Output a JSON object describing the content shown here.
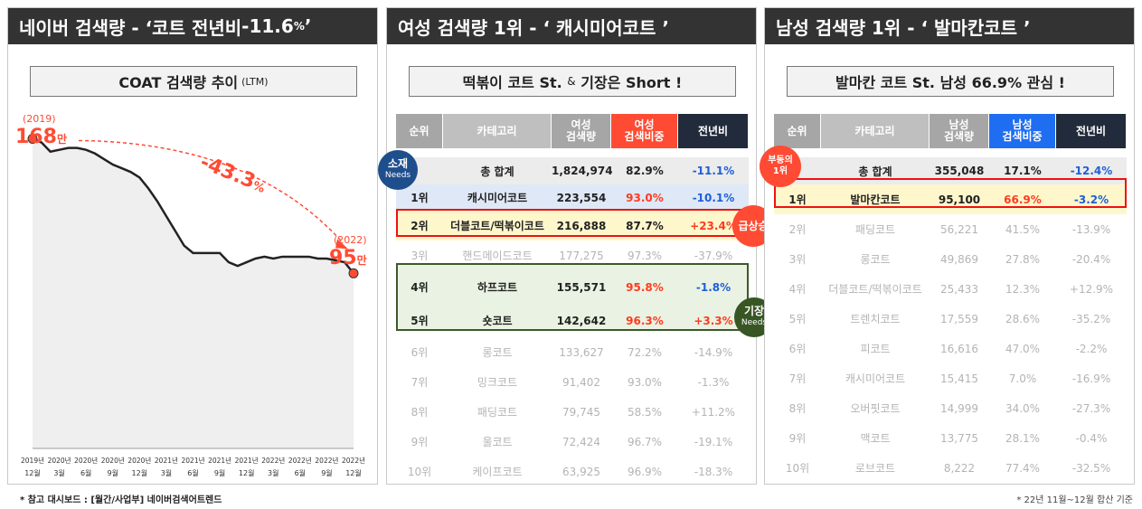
{
  "panel1": {
    "title_prefix": "네이버 검색량 - ‘코트 전년비 ",
    "title_value": "-11.6",
    "title_unit": "%",
    "title_suffix": "’",
    "subtitle": "COAT 검색량 추이",
    "subtitle_small": "(LTM)",
    "start_label_year": "(2019)",
    "start_value": "168",
    "start_unit": "만",
    "end_label_year": "(2022)",
    "end_value": "95",
    "end_unit": "만",
    "change_value": "-43.3",
    "change_unit": "%"
  },
  "chart_data": {
    "type": "line",
    "title": "COAT 검색량 추이 (LTM)",
    "x": [
      "2019년 12월",
      "2020년 1월",
      "2020년 2월",
      "2020년 3월",
      "2020년 4월",
      "2020년 5월",
      "2020년 6월",
      "2020년 7월",
      "2020년 8월",
      "2020년 9월",
      "2020년 10월",
      "2020년 11월",
      "2020년 12월",
      "2021년 1월",
      "2021년 2월",
      "2021년 3월",
      "2021년 4월",
      "2021년 5월",
      "2021년 6월",
      "2021년 7월",
      "2021년 8월",
      "2021년 9월",
      "2021년 10월",
      "2021년 11월",
      "2021년 12월",
      "2022년 1월",
      "2022년 2월",
      "2022년 3월",
      "2022년 4월",
      "2022년 5월",
      "2022년 6월",
      "2022년 7월",
      "2022년 8월",
      "2022년 9월",
      "2022년 10월",
      "2022년 11월",
      "2022년 12월"
    ],
    "values": [
      168,
      166,
      161,
      162,
      163,
      163,
      162,
      160,
      157,
      154,
      152,
      150,
      147,
      141,
      134,
      126,
      118,
      110,
      106,
      106,
      106,
      106,
      101,
      99,
      101,
      103,
      104,
      103,
      104,
      104,
      104,
      104,
      103,
      103,
      102,
      101,
      95
    ],
    "tick_labels": [
      {
        "year": "2019년",
        "month": "12월"
      },
      {
        "year": "2020년",
        "month": "3월"
      },
      {
        "year": "2020년",
        "month": "6월"
      },
      {
        "year": "2020년",
        "month": "9월"
      },
      {
        "year": "2020년",
        "month": "12월"
      },
      {
        "year": "2021년",
        "month": "3월"
      },
      {
        "year": "2021년",
        "month": "6월"
      },
      {
        "year": "2021년",
        "month": "9월"
      },
      {
        "year": "2021년",
        "month": "12월"
      },
      {
        "year": "2022년",
        "month": "3월"
      },
      {
        "year": "2022년",
        "month": "6월"
      },
      {
        "year": "2022년",
        "month": "9월"
      },
      {
        "year": "2022년",
        "month": "12월"
      }
    ],
    "annotations": [
      "168만",
      "95만",
      "-43.3%"
    ],
    "colors": {
      "line": "#222222",
      "fill": "#efefef",
      "accent": "#ff4b33"
    }
  },
  "panel2": {
    "title": "여성 검색량 1위 - ‘ 캐시미어코트 ’",
    "subtitle_a": "떡볶이 코트 St.",
    "subtitle_amp": "&",
    "subtitle_b": "기장은 Short !",
    "headers": [
      "순위",
      "카테고리",
      "여성\n검색량",
      "여성\n검색비중",
      "전년비"
    ],
    "rows": [
      {
        "rank": "",
        "category": "총 합계",
        "volume": "1,824,974",
        "share": "82.9%",
        "yoy": "-11.1%",
        "style": "total"
      },
      {
        "rank": "1위",
        "category": "캐시미어코트",
        "volume": "223,554",
        "share": "93.0%",
        "yoy": "-10.1%",
        "style": "blue"
      },
      {
        "rank": "2위",
        "category": "더블코트/떡볶이코트",
        "volume": "216,888",
        "share": "87.7%",
        "yoy": "+23.4%",
        "style": "yellow"
      },
      {
        "rank": "3위",
        "category": "핸드메이드코트",
        "volume": "177,275",
        "share": "97.3%",
        "yoy": "-37.9%",
        "style": "faded"
      },
      {
        "rank": "4위",
        "category": "하프코트",
        "volume": "155,571",
        "share": "95.8%",
        "yoy": "-1.8%",
        "style": "green"
      },
      {
        "rank": "5위",
        "category": "숏코트",
        "volume": "142,642",
        "share": "96.3%",
        "yoy": "+3.3%",
        "style": "green"
      },
      {
        "rank": "6위",
        "category": "롱코트",
        "volume": "133,627",
        "share": "72.2%",
        "yoy": "-14.9%",
        "style": "faded"
      },
      {
        "rank": "7위",
        "category": "밍크코트",
        "volume": "91,402",
        "share": "93.0%",
        "yoy": "-1.3%",
        "style": "faded"
      },
      {
        "rank": "8위",
        "category": "패딩코트",
        "volume": "79,745",
        "share": "58.5%",
        "yoy": "+11.2%",
        "style": "faded"
      },
      {
        "rank": "9위",
        "category": "울코트",
        "volume": "72,424",
        "share": "96.7%",
        "yoy": "-19.1%",
        "style": "faded"
      },
      {
        "rank": "10위",
        "category": "케이프코트",
        "volume": "63,925",
        "share": "96.9%",
        "yoy": "-18.3%",
        "style": "faded"
      }
    ],
    "bubble_needs": {
      "title": "소재",
      "sub": "Needs"
    },
    "bubble_rise": {
      "title": "급상승"
    },
    "bubble_length": {
      "title": "기장",
      "sub": "Needs"
    }
  },
  "panel3": {
    "title": "남성 검색량 1위 - ‘ 발마칸코트 ’",
    "subtitle": "발마칸 코트 St. 남성 66.9% 관심 !",
    "headers": [
      "순위",
      "카테고리",
      "남성\n검색량",
      "남성\n검색비중",
      "전년비"
    ],
    "rows": [
      {
        "rank": "",
        "category": "총 합계",
        "volume": "355,048",
        "share": "17.1%",
        "yoy": "-12.4%",
        "style": "total"
      },
      {
        "rank": "1위",
        "category": "발마칸코트",
        "volume": "95,100",
        "share": "66.9%",
        "yoy": "-3.2%",
        "style": "yellow"
      },
      {
        "rank": "2위",
        "category": "패딩코트",
        "volume": "56,221",
        "share": "41.5%",
        "yoy": "-13.9%",
        "style": "faded"
      },
      {
        "rank": "3위",
        "category": "롱코트",
        "volume": "49,869",
        "share": "27.8%",
        "yoy": "-20.4%",
        "style": "faded"
      },
      {
        "rank": "4위",
        "category": "더블코트/떡볶이코트",
        "volume": "25,433",
        "share": "12.3%",
        "yoy": "+12.9%",
        "style": "faded"
      },
      {
        "rank": "5위",
        "category": "트렌치코트",
        "volume": "17,559",
        "share": "28.6%",
        "yoy": "-35.2%",
        "style": "faded"
      },
      {
        "rank": "6위",
        "category": "피코트",
        "volume": "16,616",
        "share": "47.0%",
        "yoy": "-2.2%",
        "style": "faded"
      },
      {
        "rank": "7위",
        "category": "캐시미어코트",
        "volume": "15,415",
        "share": "7.0%",
        "yoy": "-16.9%",
        "style": "faded"
      },
      {
        "rank": "8위",
        "category": "오버핏코트",
        "volume": "14,999",
        "share": "34.0%",
        "yoy": "-27.3%",
        "style": "faded"
      },
      {
        "rank": "9위",
        "category": "맥코트",
        "volume": "13,775",
        "share": "28.1%",
        "yoy": "-0.4%",
        "style": "faded"
      },
      {
        "rank": "10위",
        "category": "로브코트",
        "volume": "8,222",
        "share": "77.4%",
        "yoy": "-32.5%",
        "style": "faded"
      }
    ],
    "bubble_first": {
      "line1": "부동의",
      "line2": "1위"
    }
  },
  "footer": {
    "left": "* 참고 대시보드 :  [월간/사업부] 네이버검색어트렌드",
    "right": "* 22년 11월~12월 합산 기준"
  }
}
